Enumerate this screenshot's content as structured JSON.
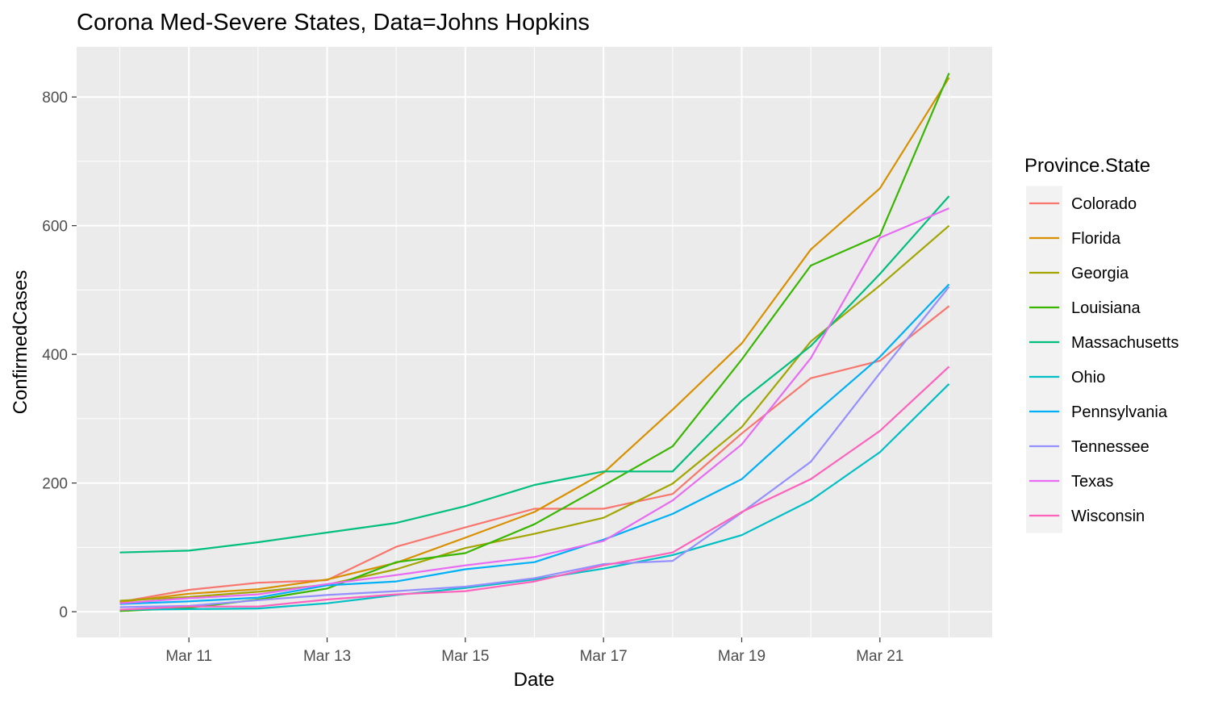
{
  "chart_data": {
    "type": "line",
    "title": "Corona Med-Severe States, Data=Johns Hopkins",
    "xlabel": "Date",
    "ylabel": "ConfirmedCases",
    "x": [
      "2020-03-10",
      "2020-03-11",
      "2020-03-12",
      "2020-03-13",
      "2020-03-14",
      "2020-03-15",
      "2020-03-16",
      "2020-03-17",
      "2020-03-18",
      "2020-03-19",
      "2020-03-20",
      "2020-03-21",
      "2020-03-22"
    ],
    "x_ticks": [
      "Mar 11",
      "Mar 13",
      "Mar 15",
      "Mar 17",
      "Mar 19",
      "Mar 21"
    ],
    "y_ticks": [
      0,
      200,
      400,
      600,
      800
    ],
    "xlim": [
      "2020-03-09T09:00",
      "2020-03-22T15:00"
    ],
    "ylim": [
      -40,
      878
    ],
    "grid": true,
    "legend": {
      "title": "Province.State",
      "position": "right"
    },
    "series": [
      {
        "name": "Colorado",
        "color": "#F8766D",
        "values": [
          15,
          34,
          45,
          49,
          101,
          131,
          160,
          160,
          183,
          277,
          363,
          390,
          475
        ]
      },
      {
        "name": "Florida",
        "color": "#D89000",
        "values": [
          15,
          28,
          35,
          50,
          76,
          115,
          155,
          216,
          314,
          417,
          563,
          658,
          830
        ]
      },
      {
        "name": "Georgia",
        "color": "#A3A500",
        "values": [
          17,
          23,
          31,
          42,
          66,
          99,
          121,
          146,
          199,
          287,
          420,
          507,
          600
        ]
      },
      {
        "name": "Louisiana",
        "color": "#39B600",
        "values": [
          1,
          6,
          19,
          36,
          77,
          91,
          136,
          196,
          257,
          392,
          538,
          585,
          837
        ]
      },
      {
        "name": "Massachusetts",
        "color": "#00BF7D",
        "values": [
          92,
          95,
          108,
          123,
          138,
          164,
          197,
          218,
          218,
          328,
          413,
          525,
          646
        ]
      },
      {
        "name": "Ohio",
        "color": "#00BFC4",
        "values": [
          3,
          4,
          5,
          13,
          26,
          37,
          50,
          67,
          88,
          119,
          173,
          248,
          354
        ]
      },
      {
        "name": "Pennsylvania",
        "color": "#00B0F6",
        "values": [
          12,
          16,
          22,
          41,
          47,
          66,
          77,
          112,
          152,
          206,
          303,
          396,
          509
        ]
      },
      {
        "name": "Tennessee",
        "color": "#9590FF",
        "values": [
          7,
          9,
          18,
          26,
          32,
          39,
          52,
          74,
          79,
          154,
          233,
          371,
          505
        ]
      },
      {
        "name": "Texas",
        "color": "#E76BF3",
        "values": [
          13,
          21,
          27,
          43,
          57,
          72,
          85,
          110,
          173,
          260,
          394,
          581,
          627
        ]
      },
      {
        "name": "Wisconsin",
        "color": "#FF62BC",
        "values": [
          3,
          8,
          8,
          19,
          27,
          32,
          47,
          72,
          92,
          155,
          206,
          281,
          381
        ]
      }
    ]
  }
}
